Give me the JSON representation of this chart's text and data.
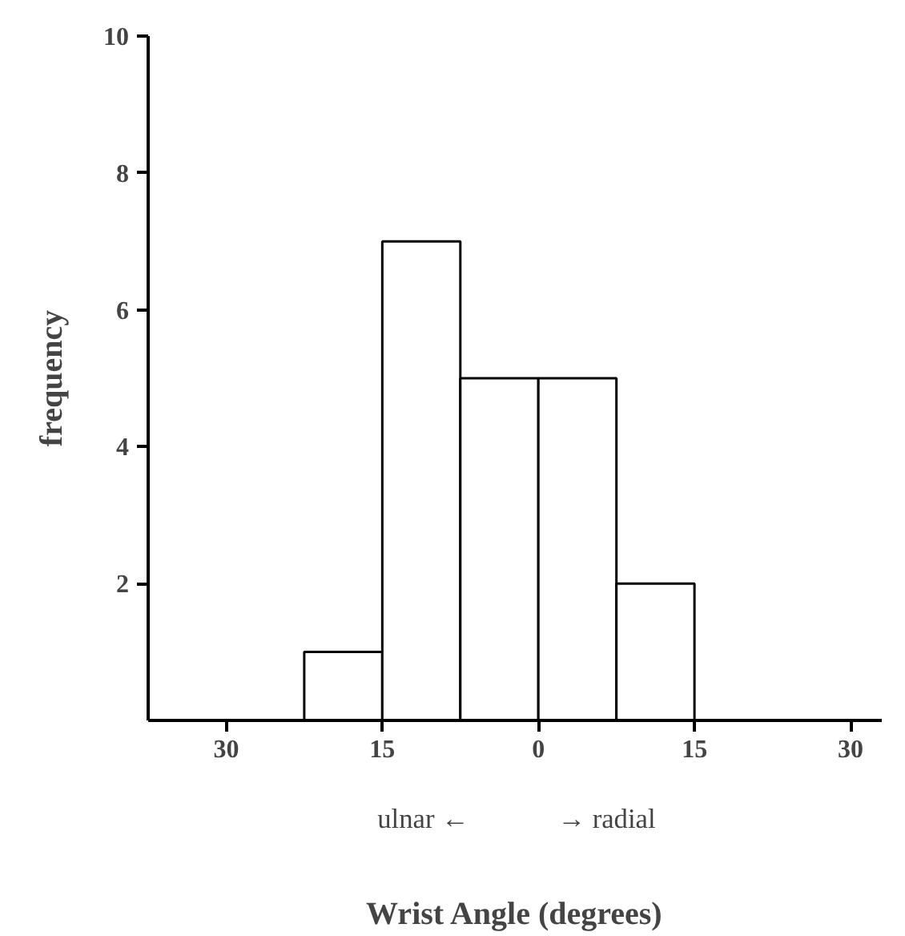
{
  "chart_data": {
    "type": "histogram",
    "xlabel": "Wrist Angle (degrees)",
    "ylabel": "frequency",
    "bins": [
      -22.5,
      -15,
      -7.5,
      0,
      7.5,
      15
    ],
    "values": [
      1,
      7,
      5,
      5,
      2
    ],
    "color": "#ffffff",
    "xlim": [
      -37.5,
      33
    ],
    "ylim": [
      0,
      10
    ],
    "xticks": [
      {
        "value": -30,
        "label": "30"
      },
      {
        "value": -15,
        "label": "15"
      },
      0,
      15,
      30
    ],
    "yticks": [
      2,
      4,
      6,
      8,
      10
    ],
    "grid": false,
    "annotations": [
      "ulnar ←",
      "→ radial"
    ]
  }
}
